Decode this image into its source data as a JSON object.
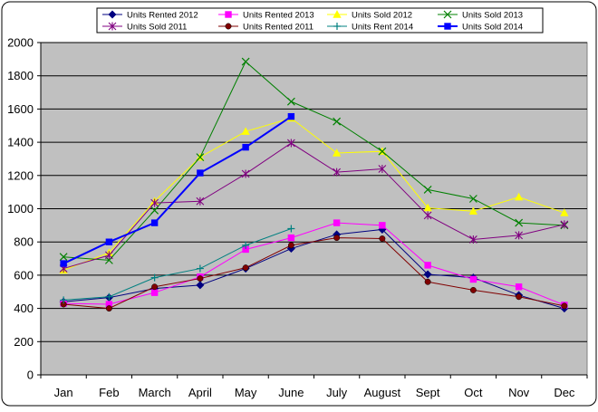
{
  "chart_data": {
    "type": "line",
    "title": "",
    "xlabel": "",
    "ylabel": "",
    "ylim": [
      0,
      2000
    ],
    "yticks": [
      0,
      200,
      400,
      600,
      800,
      1000,
      1200,
      1400,
      1600,
      1800,
      2000
    ],
    "grid": true,
    "legend_position": "top",
    "categories": [
      "Jan",
      "Feb",
      "March",
      "April",
      "May",
      "June",
      "July",
      "August",
      "Sept",
      "Oct",
      "Nov",
      "Dec"
    ],
    "plot_background": "#c0c0c0",
    "series": [
      {
        "name": "Units Rented 2012",
        "color": "#000080",
        "marker": "diamond",
        "width": 1,
        "values": [
          440,
          465,
          520,
          540,
          640,
          760,
          845,
          875,
          605,
          585,
          480,
          400
        ]
      },
      {
        "name": "Units Rented 2013",
        "color": "#ff00ff",
        "marker": "square",
        "width": 1,
        "values": [
          430,
          425,
          495,
          590,
          755,
          825,
          915,
          900,
          660,
          575,
          530,
          420
        ]
      },
      {
        "name": "Units Sold 2012",
        "color": "#ffff00",
        "marker": "triangle",
        "width": 1,
        "values": [
          630,
          735,
          1045,
          1310,
          1465,
          1545,
          1335,
          1345,
          1005,
          985,
          1070,
          975
        ]
      },
      {
        "name": "Units Sold 2013",
        "color": "#008000",
        "marker": "x",
        "width": 1,
        "values": [
          710,
          690,
          990,
          1310,
          1885,
          1645,
          1525,
          1345,
          1115,
          1060,
          915,
          900
        ]
      },
      {
        "name": "Units Sold 2011",
        "color": "#800080",
        "marker": "star",
        "width": 1,
        "values": [
          640,
          720,
          1035,
          1045,
          1210,
          1395,
          1220,
          1240,
          960,
          815,
          840,
          905
        ]
      },
      {
        "name": "Units Rented 2011",
        "color": "#800000",
        "marker": "circle",
        "width": 1,
        "values": [
          425,
          400,
          530,
          580,
          645,
          780,
          825,
          820,
          560,
          510,
          470,
          415
        ]
      },
      {
        "name": "Units Rent 2014",
        "color": "#008080",
        "marker": "plus",
        "width": 1,
        "values": [
          450,
          470,
          585,
          640,
          780,
          880,
          null,
          null,
          null,
          null,
          null,
          null
        ]
      },
      {
        "name": "Units Sold 2014",
        "color": "#0000ff",
        "marker": "square",
        "width": 2,
        "values": [
          670,
          800,
          915,
          1215,
          1370,
          1555,
          null,
          null,
          null,
          null,
          null,
          null
        ]
      }
    ]
  }
}
